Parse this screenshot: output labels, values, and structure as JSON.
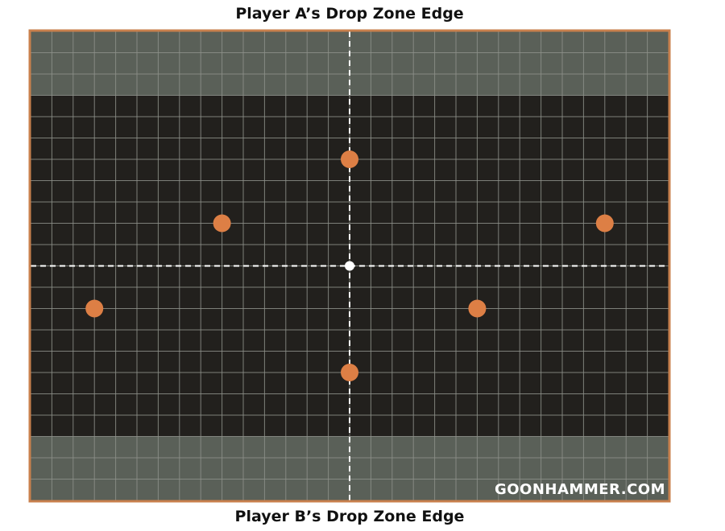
{
  "labels": {
    "top_edge": "Player A’s Drop Zone Edge",
    "bottom_edge": "Player B’s Drop Zone Edge"
  },
  "watermark": "GOONHAMMER.COM",
  "colors": {
    "board": "#22201d",
    "deployment_zone": "#5a6058",
    "grid_line": "#8d918a",
    "border": "#c8804d",
    "objective": "#dd7f45",
    "center": "#ffffff",
    "divider": "#ffffff"
  },
  "board": {
    "columns": 30,
    "rows": 22,
    "deployment_rows_each_side": 3
  },
  "objectives": [
    {
      "col": 15,
      "row": 6
    },
    {
      "col": 9,
      "row": 9
    },
    {
      "col": 27,
      "row": 9
    },
    {
      "col": 3,
      "row": 13
    },
    {
      "col": 21,
      "row": 13
    },
    {
      "col": 15,
      "row": 16
    }
  ],
  "center_marker": {
    "col": 15,
    "row": 11
  }
}
